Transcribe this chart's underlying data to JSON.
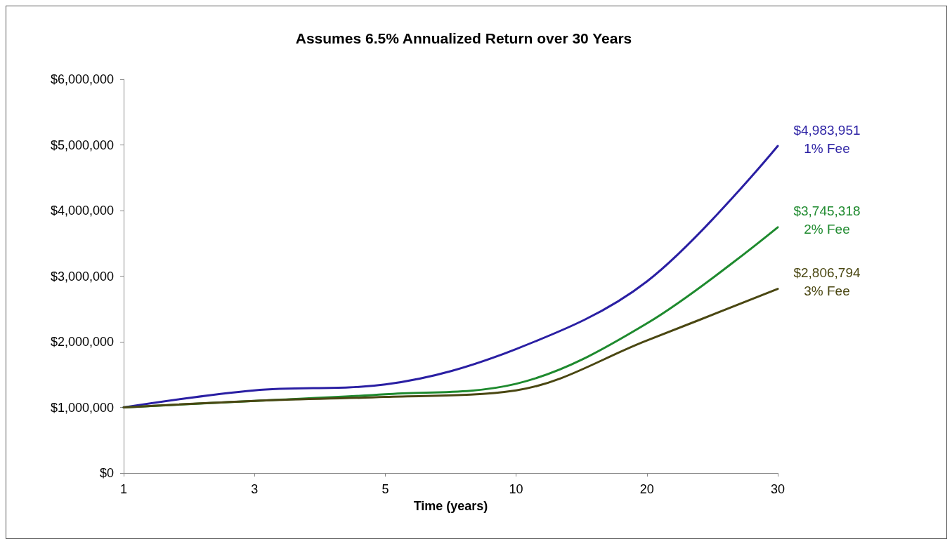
{
  "chart_data": {
    "type": "line",
    "title": "Assumes 6.5% Annualized Return over 30 Years",
    "xlabel": "Time (years)",
    "categories": [
      "1",
      "3",
      "5",
      "10",
      "20",
      "30"
    ],
    "series": [
      {
        "name": "1% Fee",
        "color": "#2a1fa3",
        "values": [
          1000000,
          1260000,
          1350000,
          1890000,
          2920000,
          4983951
        ],
        "value_labels": [
          null,
          null,
          null,
          null,
          null,
          "$4,983,951"
        ]
      },
      {
        "name": "2% Fee",
        "color": "#1e8a2e",
        "values": [
          1000000,
          1100000,
          1200000,
          1360000,
          2280000,
          3745318
        ],
        "value_labels": [
          null,
          null,
          null,
          null,
          null,
          "$3,745,318"
        ]
      },
      {
        "name": "3% Fee",
        "color": "#4a4712",
        "values": [
          1000000,
          1100000,
          1160000,
          1260000,
          2020000,
          2806794
        ],
        "value_labels": [
          null,
          null,
          null,
          null,
          null,
          "$2,806,794"
        ]
      }
    ],
    "ylim": [
      0,
      6000000
    ],
    "yticks": [
      {
        "value": 0,
        "label": "$0"
      },
      {
        "value": 1000000,
        "label": "$1,000,000"
      },
      {
        "value": 2000000,
        "label": "$2,000,000"
      },
      {
        "value": 3000000,
        "label": "$3,000,000"
      },
      {
        "value": 4000000,
        "label": "$4,000,000"
      },
      {
        "value": 5000000,
        "label": "$5,000,000"
      },
      {
        "value": 6000000,
        "label": "$6,000,000"
      }
    ],
    "grid": false,
    "legend": false,
    "marker": "none",
    "line_style": "solid"
  }
}
